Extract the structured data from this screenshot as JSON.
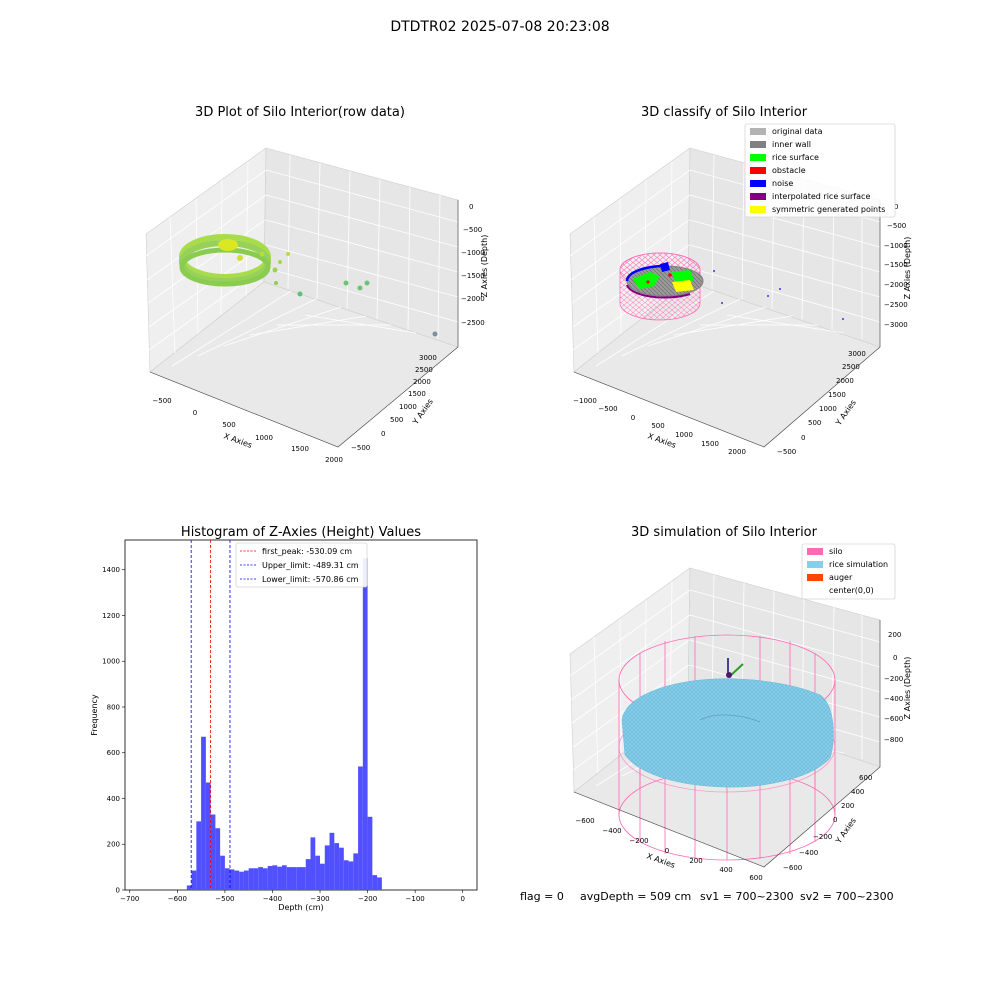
{
  "figure": {
    "suptitle": "DTDTR02 2025-07-08 20:23:08",
    "footer": {
      "flag": "flag = 0",
      "avg": "avgDepth = 509 cm",
      "sv1": "sv1 = 700~2300",
      "sv2": "sv2 = 700~2300"
    }
  },
  "panels": {
    "raw": {
      "title": "3D Plot of Silo Interior(row data)",
      "xlabel": "X Axies",
      "ylabel": "Y Axies",
      "zlabel": "Z Axies (Depth)",
      "xticks": [
        "−500",
        "0",
        "500",
        "1000",
        "1500",
        "2000"
      ],
      "yticks": [
        "−500",
        "0",
        "500",
        "1000",
        "1500",
        "2000",
        "2500",
        "3000"
      ],
      "zticks": [
        "0",
        "−500",
        "−1000",
        "−1500",
        "−2000",
        "−2500"
      ]
    },
    "classify": {
      "title": "3D classify of Silo Interior",
      "xlabel": "X Axies",
      "ylabel": "Y Axies",
      "zlabel": "Z Axies (Depth)",
      "xticks": [
        "−1000",
        "−500",
        "0",
        "500",
        "1000",
        "1500",
        "2000"
      ],
      "yticks": [
        "−500",
        "0",
        "500",
        "1000",
        "1500",
        "2000",
        "2500",
        "3000"
      ],
      "zticks": [
        "0",
        "−500",
        "−1000",
        "−1500",
        "−2000",
        "−2500",
        "−3000"
      ],
      "legend": [
        {
          "label": "original data",
          "color": "#b3b3b3"
        },
        {
          "label": "inner wall",
          "color": "#808080"
        },
        {
          "label": "rice surface",
          "color": "#00ff00"
        },
        {
          "label": "obstacle",
          "color": "#ff0000"
        },
        {
          "label": "noise",
          "color": "#0000ff"
        },
        {
          "label": "interpolated rice surface",
          "color": "#800080"
        },
        {
          "label": "symmetric generated points",
          "color": "#ffff00"
        }
      ]
    },
    "hist": {
      "title": "Histogram of Z-Axies (Height) Values",
      "legend": [
        {
          "label": "first_peak: -530.09 cm",
          "color": "#ff0000"
        },
        {
          "label": "Upper_limit: -489.31 cm",
          "color": "#0000ff"
        },
        {
          "label": "Lower_limit: -570.86 cm",
          "color": "#0000ff"
        }
      ]
    },
    "sim": {
      "title": "3D simulation of Silo Interior",
      "xlabel": "X Axies",
      "ylabel": "Y Axies",
      "zlabel": "Z Axies (Depth)",
      "xticks": [
        "−600",
        "−400",
        "−200",
        "0",
        "200",
        "400",
        "600"
      ],
      "yticks": [
        "−600",
        "−400",
        "−200",
        "0",
        "200",
        "400",
        "600"
      ],
      "zticks": [
        "200",
        "0",
        "−200",
        "−400",
        "−600",
        "−800"
      ],
      "legend": [
        {
          "label": "silo",
          "color": "#ff69b4"
        },
        {
          "label": "rice simulation",
          "color": "#87ceeb"
        },
        {
          "label": "auger",
          "color": "#ff4500"
        },
        {
          "label": "center(0,0)",
          "color": "#ffffff"
        }
      ]
    }
  },
  "chart_data": [
    {
      "type": "scatter",
      "title": "3D Plot of Silo Interior(row data)",
      "xlabel": "X Axies",
      "ylabel": "Y Axies",
      "zlabel": "Z Axies (Depth)",
      "xlim": [
        -700,
        2100
      ],
      "ylim": [
        -700,
        3100
      ],
      "zlim": [
        -2800,
        100
      ],
      "grid": true
    },
    {
      "type": "scatter",
      "title": "3D classify of Silo Interior",
      "xlabel": "X Axies",
      "ylabel": "Y Axies",
      "zlabel": "Z Axies (Depth)",
      "xlim": [
        -1200,
        2300
      ],
      "ylim": [
        -700,
        3100
      ],
      "zlim": [
        -3100,
        100
      ],
      "legend_position": "top-right",
      "grid": true
    },
    {
      "type": "bar",
      "title": "Histogram of Z-Axies (Height) Values",
      "xlabel": "Depth (cm)",
      "ylabel": "Frequency",
      "xlim": [
        -710,
        30
      ],
      "ylim": [
        0,
        1530
      ],
      "xticks": [
        -700,
        -600,
        -500,
        -400,
        -300,
        -200,
        -100,
        0
      ],
      "yticks": [
        0,
        200,
        400,
        600,
        800,
        1000,
        1200,
        1400
      ],
      "bin_width": 10,
      "bins": [
        [
          -580,
          20
        ],
        [
          -570,
          85
        ],
        [
          -560,
          300
        ],
        [
          -550,
          670
        ],
        [
          -540,
          470
        ],
        [
          -530,
          330
        ],
        [
          -520,
          270
        ],
        [
          -510,
          150
        ],
        [
          -500,
          95
        ],
        [
          -490,
          90
        ],
        [
          -480,
          85
        ],
        [
          -470,
          80
        ],
        [
          -460,
          85
        ],
        [
          -450,
          95
        ],
        [
          -440,
          95
        ],
        [
          -430,
          100
        ],
        [
          -420,
          95
        ],
        [
          -410,
          105
        ],
        [
          -400,
          108
        ],
        [
          -390,
          102
        ],
        [
          -380,
          108
        ],
        [
          -370,
          100
        ],
        [
          -360,
          100
        ],
        [
          -350,
          100
        ],
        [
          -340,
          100
        ],
        [
          -330,
          135
        ],
        [
          -320,
          230
        ],
        [
          -310,
          150
        ],
        [
          -300,
          115
        ],
        [
          -290,
          195
        ],
        [
          -280,
          250
        ],
        [
          -270,
          205
        ],
        [
          -260,
          185
        ],
        [
          -250,
          130
        ],
        [
          -240,
          125
        ],
        [
          -230,
          160
        ],
        [
          -220,
          540
        ],
        [
          -210,
          1450
        ],
        [
          -200,
          320
        ],
        [
          -190,
          65
        ],
        [
          -180,
          55
        ]
      ],
      "bar_color": "#5050ff",
      "vlines": [
        {
          "x": -530.09,
          "color": "#ff0000"
        },
        {
          "x": -489.31,
          "color": "#0000ff"
        },
        {
          "x": -570.86,
          "color": "#0000ff"
        }
      ],
      "legend_position": "top"
    },
    {
      "type": "scatter",
      "title": "3D simulation of Silo Interior",
      "xlabel": "X Axies",
      "ylabel": "Y Axies",
      "zlabel": "Z Axies (Depth)",
      "xlim": [
        -700,
        700
      ],
      "ylim": [
        -700,
        700
      ],
      "zlim": [
        -1000,
        350
      ],
      "legend_position": "top-right",
      "grid": true
    }
  ]
}
